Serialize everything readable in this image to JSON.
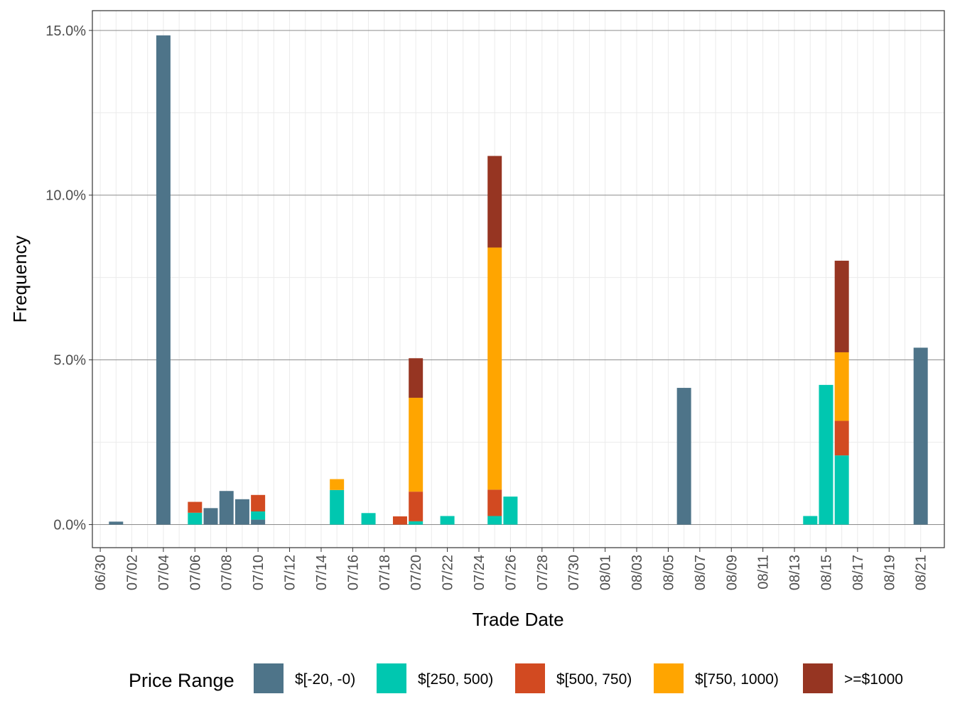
{
  "chart_data": {
    "type": "bar",
    "stacked": true,
    "title": "",
    "xlabel": "Trade Date",
    "ylabel": "Frequency",
    "ylim": [
      -0.7,
      15.6
    ],
    "y_ticks": [
      0,
      5,
      10,
      15
    ],
    "y_tick_labels": [
      "0.0%",
      "5.0%",
      "10.0%",
      "15.0%"
    ],
    "x_range": [
      "2018-06-29.5",
      "2018-08-22.5"
    ],
    "x_ticks": [
      "2018-06-30",
      "2018-07-02",
      "2018-07-04",
      "2018-07-06",
      "2018-07-08",
      "2018-07-10",
      "2018-07-12",
      "2018-07-14",
      "2018-07-16",
      "2018-07-18",
      "2018-07-20",
      "2018-07-22",
      "2018-07-24",
      "2018-07-26",
      "2018-07-28",
      "2018-07-30",
      "2018-08-01",
      "2018-08-03",
      "2018-08-05",
      "2018-08-07",
      "2018-08-09",
      "2018-08-11",
      "2018-08-13",
      "2018-08-15",
      "2018-08-17",
      "2018-08-19",
      "2018-08-21"
    ],
    "x_tick_labels": [
      "06/30",
      "07/02",
      "07/04",
      "07/06",
      "07/08",
      "07/10",
      "07/12",
      "07/14",
      "07/16",
      "07/18",
      "07/20",
      "07/22",
      "07/24",
      "07/26",
      "07/28",
      "07/30",
      "08/01",
      "08/03",
      "08/05",
      "08/07",
      "08/09",
      "08/11",
      "08/13",
      "08/15",
      "08/17",
      "08/19",
      "08/21"
    ],
    "grid": true,
    "legend": {
      "title": "Price Range",
      "position": "bottom"
    },
    "categories": [
      "2018-07-01",
      "2018-07-04",
      "2018-07-06",
      "2018-07-07",
      "2018-07-08",
      "2018-07-09",
      "2018-07-10",
      "2018-07-15",
      "2018-07-17",
      "2018-07-19",
      "2018-07-20",
      "2018-07-22",
      "2018-07-25",
      "2018-07-26",
      "2018-08-06",
      "2018-08-14",
      "2018-08-15",
      "2018-08-16",
      "2018-08-21"
    ],
    "series": [
      {
        "name": "$[-20, -0)",
        "color": "#4e7489",
        "values": [
          0.09,
          14.85,
          0,
          0.5,
          1.02,
          0.77,
          0.15,
          0,
          0,
          0,
          0,
          0,
          0,
          0,
          4.15,
          0,
          0,
          0,
          5.37
        ]
      },
      {
        "name": "$[250, 500)",
        "color": "#00c7b0",
        "values": [
          0,
          0,
          0.36,
          0,
          0,
          0,
          0.25,
          1.05,
          0.35,
          0,
          0.1,
          0.26,
          0.26,
          0.85,
          0,
          0.26,
          4.24,
          2.1,
          0
        ]
      },
      {
        "name": "$[500, 750)",
        "color": "#d24a21",
        "values": [
          0,
          0,
          0.33,
          0,
          0,
          0,
          0.5,
          0,
          0,
          0.25,
          0.9,
          0,
          0.8,
          0,
          0,
          0,
          0,
          1.05,
          0
        ]
      },
      {
        "name": "$[750, 1000)",
        "color": "#ffa500",
        "values": [
          0,
          0,
          0,
          0,
          0,
          0,
          0,
          0.33,
          0,
          0,
          2.85,
          0,
          7.35,
          0,
          0,
          0,
          0,
          2.08,
          0
        ]
      },
      {
        "name": ">=$1000",
        "color": "#963522",
        "values": [
          0,
          0,
          0,
          0,
          0,
          0,
          0,
          0,
          0,
          0,
          1.2,
          0,
          2.78,
          0,
          0,
          0,
          0,
          2.78,
          0
        ]
      }
    ]
  }
}
